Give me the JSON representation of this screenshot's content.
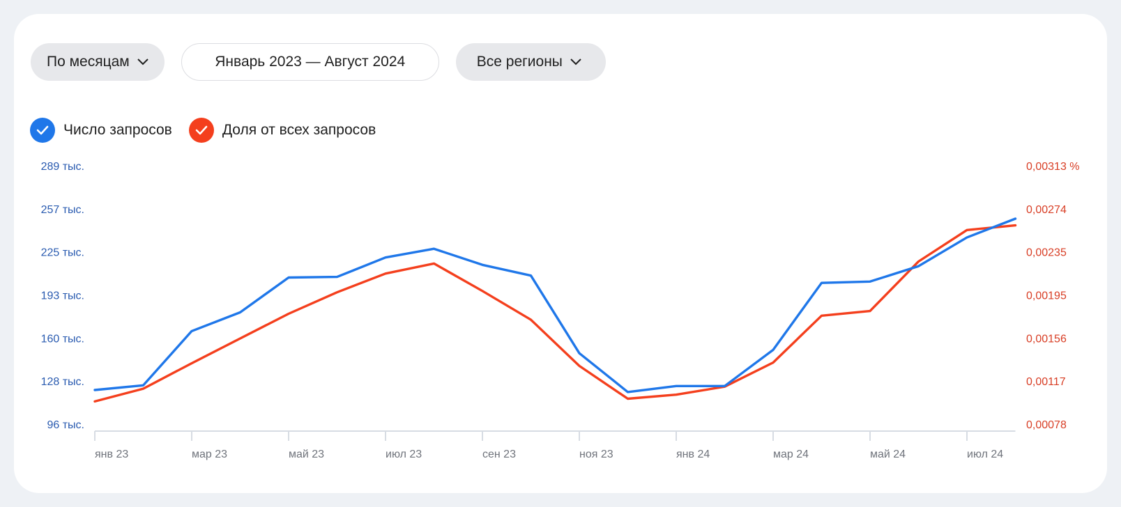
{
  "controls": {
    "period_label": "По месяцам",
    "range_label": "Январь 2023 — Август 2024",
    "region_label": "Все регионы"
  },
  "colors": {
    "blue": "#1f77e9",
    "red": "#f43f1d"
  },
  "chart_data": {
    "type": "line",
    "x": [
      "янв 23",
      "фев 23",
      "мар 23",
      "апр 23",
      "май 23",
      "июн 23",
      "июл 23",
      "авг 23",
      "сен 23",
      "окт 23",
      "ноя 23",
      "дек 23",
      "янв 24",
      "фев 24",
      "мар 24",
      "апр 24",
      "май 24",
      "июн 24",
      "июл 24",
      "авг 24"
    ],
    "x_tick_labels": [
      "янв 23",
      "мар 23",
      "май 23",
      "июл 23",
      "сен 23",
      "ноя 23",
      "янв 24",
      "мар 24",
      "май 24",
      "июл 24"
    ],
    "y_left_ticks": [
      "289 тыс.",
      "257 тыс.",
      "225 тыс.",
      "193 тыс.",
      "160 тыс.",
      "128 тыс.",
      "96 тыс."
    ],
    "y_right_ticks": [
      "0,00313 %",
      "0,00274",
      "0,00235",
      "0,00195",
      "0,00156",
      "0,00117",
      "0,00078"
    ],
    "y_left_range": [
      96000,
      289000
    ],
    "y_right_range": [
      0.00078,
      0.00313
    ],
    "series": [
      {
        "name": "Число запросов",
        "color": "#1f77e9",
        "axis": "left",
        "values": [
          122000,
          125500,
          166000,
          180000,
          206000,
          206500,
          221000,
          227500,
          215500,
          207500,
          149500,
          120500,
          125000,
          125000,
          152000,
          202000,
          203000,
          214500,
          236000,
          250000
        ]
      },
      {
        "name": "Доля от всех запросов",
        "color": "#f43f1d",
        "axis": "left_scale",
        "values_on_left_scale": [
          113500,
          123000,
          142000,
          160500,
          179000,
          195000,
          209000,
          216500,
          196000,
          174500,
          140000,
          115500,
          118500,
          124500,
          142500,
          177500,
          181000,
          218000,
          241500,
          245000
        ]
      }
    ],
    "legend_placement": "top-left",
    "grid": false
  }
}
